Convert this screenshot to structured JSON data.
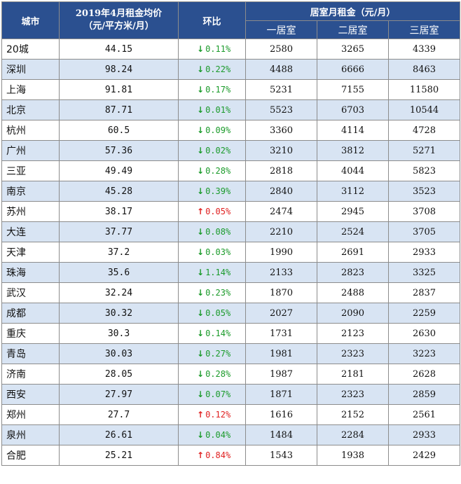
{
  "headers": {
    "city": "城市",
    "price_line1": "2019年4月租金均价",
    "price_line2": "（元/平方米/月）",
    "mom": "环比",
    "rent_group": "居室月租金（元/月）",
    "rooms": [
      "一居室",
      "二居室",
      "三居室"
    ]
  },
  "colors": {
    "header_bg": "#2b5090",
    "row_alt_bg": "#d8e4f3",
    "down": "#1a9a2a",
    "up": "#e02020"
  },
  "icons": {
    "down": "arrow-down-icon",
    "up": "arrow-up-icon"
  },
  "rows": [
    {
      "city": "20城",
      "price": "44.15",
      "dir": "down",
      "arrow": "↓",
      "mom": "0.11%",
      "r1": "2580",
      "r2": "3265",
      "r3": "4339"
    },
    {
      "city": "深圳",
      "price": "98.24",
      "dir": "down",
      "arrow": "↓",
      "mom": "0.22%",
      "r1": "4488",
      "r2": "6666",
      "r3": "8463"
    },
    {
      "city": "上海",
      "price": "91.81",
      "dir": "down",
      "arrow": "↓",
      "mom": "0.17%",
      "r1": "5231",
      "r2": "7155",
      "r3": "11580"
    },
    {
      "city": "北京",
      "price": "87.71",
      "dir": "down",
      "arrow": "↓",
      "mom": "0.01%",
      "r1": "5523",
      "r2": "6703",
      "r3": "10544"
    },
    {
      "city": "杭州",
      "price": "60.5",
      "dir": "down",
      "arrow": "↓",
      "mom": "0.09%",
      "r1": "3360",
      "r2": "4114",
      "r3": "4728"
    },
    {
      "city": "广州",
      "price": "57.36",
      "dir": "down",
      "arrow": "↓",
      "mom": "0.02%",
      "r1": "3210",
      "r2": "3812",
      "r3": "5271"
    },
    {
      "city": "三亚",
      "price": "49.49",
      "dir": "down",
      "arrow": "↓",
      "mom": "0.28%",
      "r1": "2818",
      "r2": "4044",
      "r3": "5823"
    },
    {
      "city": "南京",
      "price": "45.28",
      "dir": "down",
      "arrow": "↓",
      "mom": "0.39%",
      "r1": "2840",
      "r2": "3112",
      "r3": "3523"
    },
    {
      "city": "苏州",
      "price": "38.17",
      "dir": "up",
      "arrow": "↑",
      "mom": "0.05%",
      "r1": "2474",
      "r2": "2945",
      "r3": "3708"
    },
    {
      "city": "大连",
      "price": "37.77",
      "dir": "down",
      "arrow": "↓",
      "mom": "0.08%",
      "r1": "2210",
      "r2": "2524",
      "r3": "3705"
    },
    {
      "city": "天津",
      "price": "37.2",
      "dir": "down",
      "arrow": "↓",
      "mom": "0.03%",
      "r1": "1990",
      "r2": "2691",
      "r3": "2933"
    },
    {
      "city": "珠海",
      "price": "35.6",
      "dir": "down",
      "arrow": "↓",
      "mom": "1.14%",
      "r1": "2133",
      "r2": "2823",
      "r3": "3325"
    },
    {
      "city": "武汉",
      "price": "32.24",
      "dir": "down",
      "arrow": "↓",
      "mom": "0.23%",
      "r1": "1870",
      "r2": "2488",
      "r3": "2837"
    },
    {
      "city": "成都",
      "price": "30.32",
      "dir": "down",
      "arrow": "↓",
      "mom": "0.05%",
      "r1": "2027",
      "r2": "2090",
      "r3": "2259"
    },
    {
      "city": "重庆",
      "price": "30.3",
      "dir": "down",
      "arrow": "↓",
      "mom": "0.14%",
      "r1": "1731",
      "r2": "2123",
      "r3": "2630"
    },
    {
      "city": "青岛",
      "price": "30.03",
      "dir": "down",
      "arrow": "↓",
      "mom": "0.27%",
      "r1": "1981",
      "r2": "2323",
      "r3": "3223"
    },
    {
      "city": "济南",
      "price": "28.05",
      "dir": "down",
      "arrow": "↓",
      "mom": "0.28%",
      "r1": "1987",
      "r2": "2181",
      "r3": "2628"
    },
    {
      "city": "西安",
      "price": "27.97",
      "dir": "down",
      "arrow": "↓",
      "mom": "0.07%",
      "r1": "1871",
      "r2": "2323",
      "r3": "2859"
    },
    {
      "city": "郑州",
      "price": "27.7",
      "dir": "up",
      "arrow": "↑",
      "mom": "0.12%",
      "r1": "1616",
      "r2": "2152",
      "r3": "2561"
    },
    {
      "city": "泉州",
      "price": "26.61",
      "dir": "down",
      "arrow": "↓",
      "mom": "0.04%",
      "r1": "1484",
      "r2": "2284",
      "r3": "2933"
    },
    {
      "city": "合肥",
      "price": "25.21",
      "dir": "up",
      "arrow": "↑",
      "mom": "0.84%",
      "r1": "1543",
      "r2": "1938",
      "r3": "2429"
    }
  ]
}
